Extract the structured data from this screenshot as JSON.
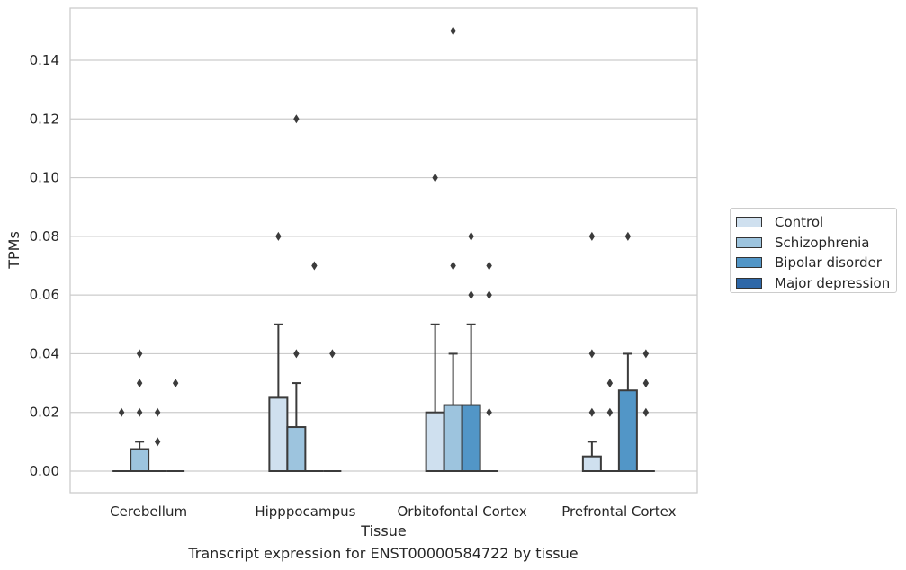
{
  "caption": "Transcript expression for ENST00000584722 by tissue",
  "chart_data": {
    "type": "box",
    "xlabel": "Tissue",
    "ylabel": "TPMs",
    "ylim": [
      -0.007,
      0.157
    ],
    "yticks": [
      0.0,
      0.02,
      0.04,
      0.06,
      0.08,
      0.1,
      0.12,
      0.14
    ],
    "ytick_labels": [
      "0.00",
      "0.02",
      "0.04",
      "0.06",
      "0.08",
      "0.10",
      "0.12",
      "0.14"
    ],
    "grid": "horizontal",
    "legend_position": "right",
    "categories": [
      "Cerebellum",
      "Hipppocampus",
      "Orbitofontal Cortex",
      "Prefrontal Cortex"
    ],
    "series": [
      {
        "name": "Control",
        "color": "#cfe0ef",
        "boxes": [
          {
            "q1": 0,
            "median": 0,
            "q3": 0,
            "whisker_low": 0,
            "whisker_high": 0,
            "outliers": [
              0.02
            ]
          },
          {
            "q1": 0,
            "median": 0,
            "q3": 0.025,
            "whisker_low": 0,
            "whisker_high": 0.05,
            "outliers": [
              0.08
            ]
          },
          {
            "q1": 0,
            "median": 0,
            "q3": 0.02,
            "whisker_low": 0,
            "whisker_high": 0.05,
            "outliers": [
              0.1
            ]
          },
          {
            "q1": 0,
            "median": 0,
            "q3": 0.005,
            "whisker_low": 0,
            "whisker_high": 0.01,
            "outliers": [
              0.02,
              0.04,
              0.08
            ]
          }
        ]
      },
      {
        "name": "Schizophrenia",
        "color": "#9dc4de",
        "boxes": [
          {
            "q1": 0,
            "median": 0,
            "q3": 0.0075,
            "whisker_low": 0,
            "whisker_high": 0.01,
            "outliers": [
              0.02,
              0.03,
              0.04
            ]
          },
          {
            "q1": 0,
            "median": 0,
            "q3": 0.015,
            "whisker_low": 0,
            "whisker_high": 0.03,
            "outliers": [
              0.04,
              0.12
            ]
          },
          {
            "q1": 0,
            "median": 0,
            "q3": 0.0225,
            "whisker_low": 0,
            "whisker_high": 0.04,
            "outliers": [
              0.07,
              0.15
            ]
          },
          {
            "q1": 0,
            "median": 0,
            "q3": 0,
            "whisker_low": 0,
            "whisker_high": 0,
            "outliers": [
              0.02,
              0.03
            ]
          }
        ]
      },
      {
        "name": "Bipolar disorder",
        "color": "#5296c7",
        "boxes": [
          {
            "q1": 0,
            "median": 0,
            "q3": 0,
            "whisker_low": 0,
            "whisker_high": 0,
            "outliers": [
              0.01,
              0.02
            ]
          },
          {
            "q1": 0,
            "median": 0,
            "q3": 0,
            "whisker_low": 0,
            "whisker_high": 0,
            "outliers": [
              0.07
            ]
          },
          {
            "q1": 0,
            "median": 0,
            "q3": 0.0225,
            "whisker_low": 0,
            "whisker_high": 0.05,
            "outliers": [
              0.06,
              0.08
            ]
          },
          {
            "q1": 0,
            "median": 0,
            "q3": 0.0275,
            "whisker_low": 0,
            "whisker_high": 0.04,
            "outliers": [
              0.08
            ]
          }
        ]
      },
      {
        "name": "Major depression",
        "color": "#2d67a8",
        "boxes": [
          {
            "q1": 0,
            "median": 0,
            "q3": 0,
            "whisker_low": 0,
            "whisker_high": 0,
            "outliers": [
              0.03
            ]
          },
          {
            "q1": 0,
            "median": 0,
            "q3": 0,
            "whisker_low": 0,
            "whisker_high": 0,
            "outliers": [
              0.04
            ]
          },
          {
            "q1": 0,
            "median": 0,
            "q3": 0,
            "whisker_low": 0,
            "whisker_high": 0,
            "outliers": [
              0.02,
              0.06,
              0.07
            ]
          },
          {
            "q1": 0,
            "median": 0,
            "q3": 0,
            "whisker_low": 0,
            "whisker_high": 0,
            "outliers": [
              0.02,
              0.03,
              0.04
            ]
          }
        ]
      }
    ]
  }
}
